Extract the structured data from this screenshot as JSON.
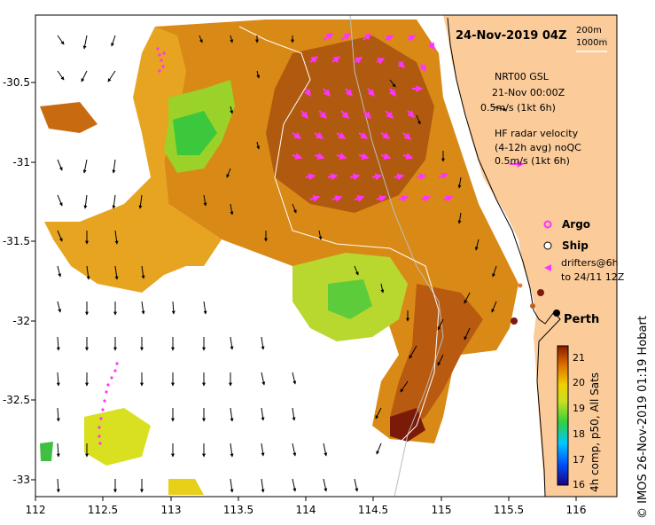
{
  "map": {
    "title": "24-Nov-2019 04Z",
    "isobath_labels": [
      "200m",
      "1000m"
    ],
    "x_ticks": [
      "112",
      "112.5",
      "113",
      "113.5",
      "114",
      "114.5",
      "115",
      "115.5",
      "116"
    ],
    "y_ticks": [
      "-30.5",
      "-31",
      "-31.5",
      "-32",
      "-32.5",
      "-33"
    ],
    "lon_range": [
      112,
      116.3
    ],
    "lat_range": [
      -33.1,
      -30.1
    ]
  },
  "legend": {
    "model_line1": "NRT00 GSL",
    "model_line2": "21-Nov 00:00Z",
    "model_scale": "0.5m/s (1kt 6h)",
    "radar_line1": "HF radar velocity",
    "radar_line2": "(4-12h avg) noQC",
    "radar_scale": "0.5m/s (1kt 6h)",
    "argo": "Argo",
    "ship": "Ship",
    "drifters_line1": "drifters@6h",
    "drifters_line2": "to 24/11 12Z"
  },
  "place": {
    "city": "Perth"
  },
  "colorbar": {
    "ticks": [
      "21",
      "20",
      "19",
      "18",
      "17",
      "16"
    ],
    "label": "4h comp, p50, All Sats",
    "range": [
      16,
      21.5
    ]
  },
  "credit": "© IMOS 26-Nov-2019 01:19 Hobart",
  "colors": {
    "land": "#fbcb9a",
    "radar_arrow": "#ff33ff",
    "model_arrow": "#000000",
    "ship": "#7a1a10"
  }
}
